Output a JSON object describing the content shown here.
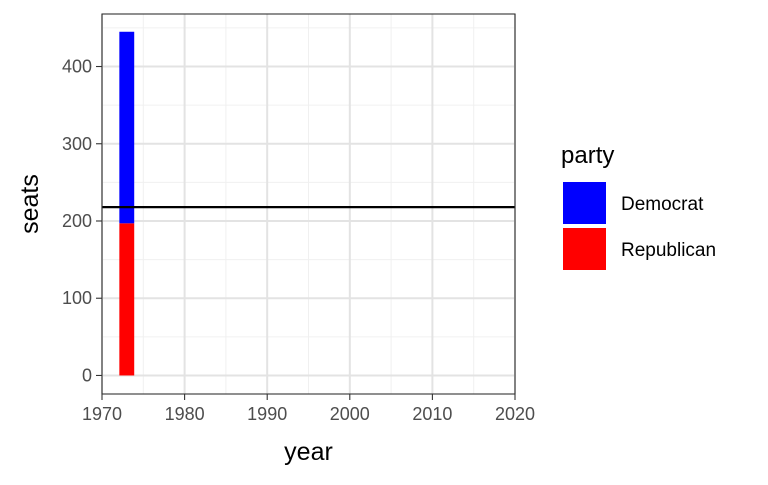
{
  "chart_data": {
    "type": "bar",
    "stacked": true,
    "xlabel": "year",
    "ylabel": "seats",
    "xlim": [
      1970,
      2020
    ],
    "ylim": [
      -24,
      468
    ],
    "xticks": [
      1970,
      1980,
      1990,
      2000,
      2010,
      2020
    ],
    "yticks": [
      0,
      100,
      200,
      300,
      400
    ],
    "x": [
      1973
    ],
    "series": [
      {
        "name": "Republican",
        "color": "#ff0000",
        "values": [
          197
        ]
      },
      {
        "name": "Democrat",
        "color": "#0000ff",
        "values": [
          248
        ]
      }
    ],
    "hline": 218,
    "grid": true,
    "legend": {
      "title": "party",
      "position": "right",
      "entries": [
        {
          "label": "Democrat",
          "color": "#0000ff"
        },
        {
          "label": "Republican",
          "color": "#ff0000"
        }
      ]
    }
  }
}
